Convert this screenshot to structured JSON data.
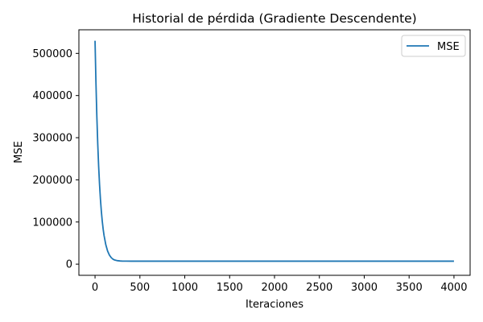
{
  "chart_data": {
    "type": "line",
    "title": "Historial de pérdida (Gradiente Descendente)",
    "xlabel": "Iteraciones",
    "ylabel": "MSE",
    "xlim": [
      -180,
      4180
    ],
    "ylim": [
      -26500,
      556000
    ],
    "xticks": [
      0,
      500,
      1000,
      1500,
      2000,
      2500,
      3000,
      3500,
      4000
    ],
    "yticks": [
      0,
      100000,
      200000,
      300000,
      400000,
      500000
    ],
    "grid": false,
    "legend": {
      "placement": "top-right",
      "entries": [
        "MSE"
      ]
    },
    "series": [
      {
        "name": "MSE",
        "color": "#1f77b4",
        "x": [
          0,
          10,
          20,
          30,
          40,
          50,
          60,
          70,
          80,
          90,
          100,
          120,
          140,
          160,
          180,
          200,
          220,
          250,
          280,
          300,
          350,
          400,
          500,
          1000,
          2000,
          3000,
          4000
        ],
        "values": [
          530000,
          431500,
          351300,
          286000,
          232900,
          189700,
          154600,
          126000,
          102800,
          83900,
          68500,
          46000,
          31000,
          21500,
          15500,
          11700,
          9700,
          8200,
          7500,
          7300,
          7100,
          7050,
          7000,
          7000,
          7000,
          7000,
          7000
        ]
      }
    ]
  }
}
